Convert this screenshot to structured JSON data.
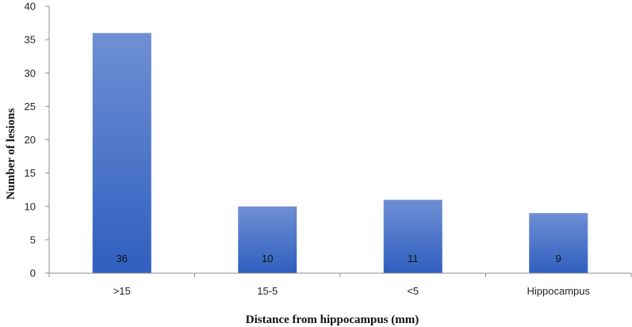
{
  "chart_data": {
    "type": "bar",
    "categories": [
      ">15",
      "15-5",
      "<5",
      "Hippocampus"
    ],
    "values": [
      36,
      10,
      11,
      9
    ],
    "data_labels": [
      "36",
      "10",
      "11",
      "9"
    ],
    "xlabel": "Distance from hippocampus (mm)",
    "ylabel": "Number of lesions",
    "ylim": [
      0,
      40
    ],
    "yticks": [
      0,
      5,
      10,
      15,
      20,
      25,
      30,
      35,
      40
    ],
    "ytick_labels": [
      "0",
      "5",
      "10",
      "15",
      "20",
      "25",
      "30",
      "35",
      "40"
    ],
    "grid": false,
    "legend": "none",
    "colors": {
      "bar_top": "#6f8fd4",
      "bar_bottom": "#2f5fbf",
      "axis": "#8c8c8c"
    }
  }
}
